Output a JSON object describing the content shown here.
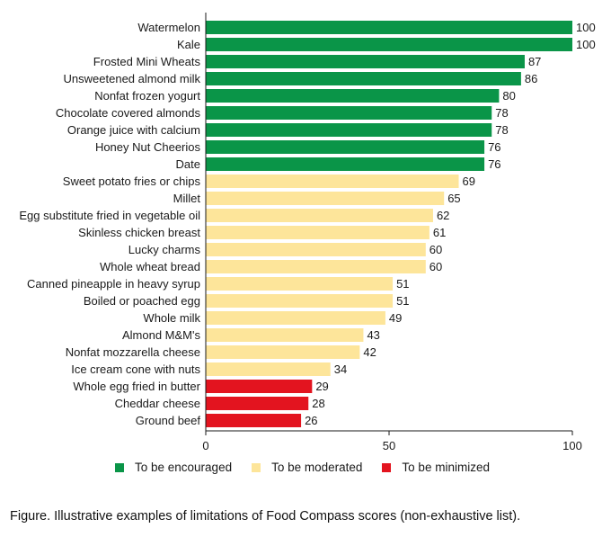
{
  "chart_data": {
    "type": "bar",
    "orientation": "horizontal",
    "categories": [
      "Watermelon",
      "Kale",
      "Frosted Mini Wheats",
      "Unsweetened almond milk",
      "Nonfat frozen yogurt",
      "Chocolate covered almonds",
      "Orange juice with calcium",
      "Honey Nut Cheerios",
      "Date",
      "Sweet potato fries or chips",
      "Millet",
      "Egg substitute fried in vegetable oil",
      "Skinless chicken breast",
      "Lucky charms",
      "Whole wheat bread",
      "Canned pineapple in heavy syrup",
      "Boiled or poached egg",
      "Whole milk",
      "Almond M&M's",
      "Nonfat mozzarella cheese",
      "Ice cream cone with nuts",
      "Whole egg fried in butter",
      "Cheddar cheese",
      "Ground beef"
    ],
    "values": [
      100,
      100,
      87,
      86,
      80,
      78,
      78,
      76,
      76,
      69,
      65,
      62,
      61,
      60,
      60,
      51,
      51,
      49,
      43,
      42,
      34,
      29,
      28,
      26
    ],
    "groups": [
      0,
      0,
      0,
      0,
      0,
      0,
      0,
      0,
      0,
      1,
      1,
      1,
      1,
      1,
      1,
      1,
      1,
      1,
      1,
      1,
      1,
      2,
      2,
      2
    ],
    "xlim": [
      0,
      100
    ],
    "xticks": [
      0,
      50,
      100
    ],
    "xlabel": "",
    "ylabel": "",
    "grid": false,
    "legend_position": "bottom"
  },
  "legend": [
    {
      "label": "To be encouraged",
      "color": "#0a9548"
    },
    {
      "label": "To be moderated",
      "color": "#fde59a"
    },
    {
      "label": "To be minimized",
      "color": "#e3141f"
    }
  ],
  "caption": "Figure. Illustrative examples of limitations of Food Compass scores (non-exhaustive list)."
}
